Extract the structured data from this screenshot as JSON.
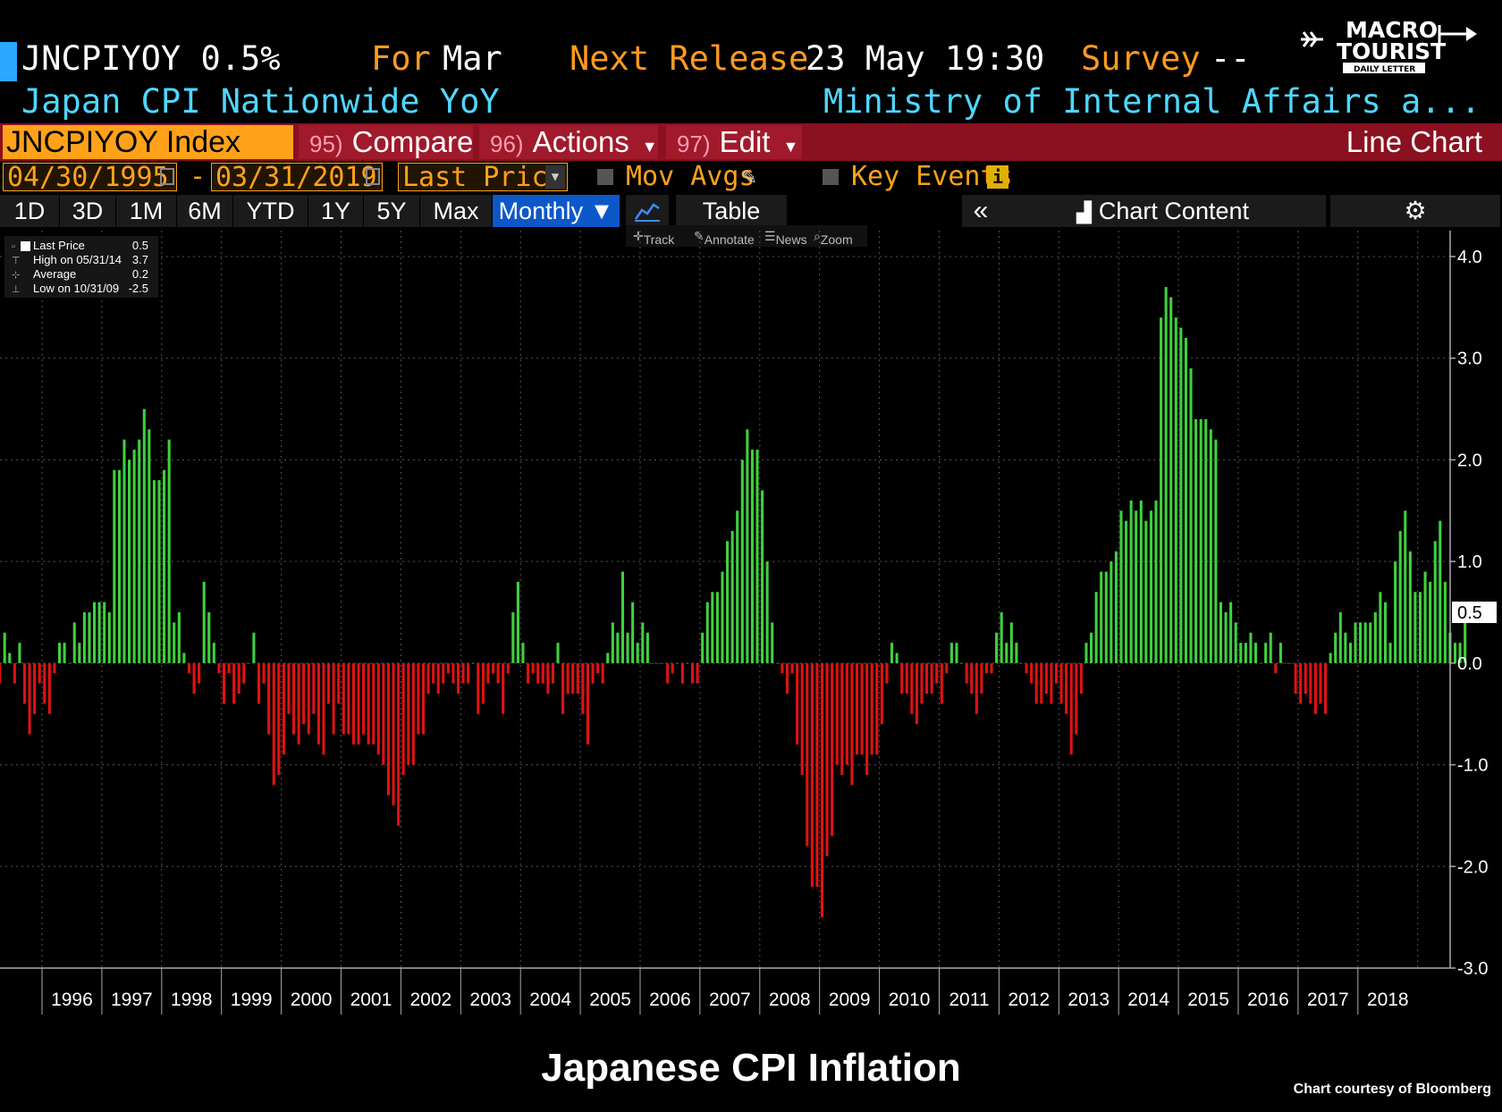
{
  "header": {
    "ticker_price": "JNCPIYOY 0.5%",
    "for_label": "For",
    "for_value": "Mar",
    "next_release_label": "Next Release",
    "next_release_value": "23 May 19:30",
    "survey_label": "Survey",
    "survey_value": "--",
    "description": "Japan CPI Nationwide YoY",
    "source": "Ministry of Internal Affairs a..."
  },
  "logo": {
    "line1": "MACRO",
    "line2": "TOURIST",
    "line3": "DAILY LETTER"
  },
  "toolbar": {
    "ticker_input": "JNCPIYOY Index",
    "compare_num": "95)",
    "compare_label": "Compare",
    "actions_num": "96)",
    "actions_label": "Actions",
    "edit_num": "97)",
    "edit_label": "Edit",
    "chart_type": "Line Chart"
  },
  "range": {
    "start_date": "04/30/1995",
    "dash": "-",
    "end_date": "03/31/2019",
    "field": "Last Price",
    "mov_avgs": "Mov Avgs",
    "key_events": "Key Events"
  },
  "periods": [
    "1D",
    "3D",
    "1M",
    "6M",
    "YTD",
    "1Y",
    "5Y",
    "Max"
  ],
  "frequency": "Monthly ▼",
  "table_label": "Table",
  "chart_content_label": "Chart Content",
  "chart_tools": [
    "Track",
    "Annotate",
    "News",
    "Zoom"
  ],
  "legend": {
    "last_price_label": "Last Price",
    "last_price_value": "0.5",
    "high_label": "High on 05/31/14",
    "high_value": "3.7",
    "average_label": "Average",
    "average_value": "0.2",
    "low_label": "Low on 10/31/09",
    "low_value": "-2.5"
  },
  "footer": {
    "title": "Japanese CPI Inflation",
    "credit": "Chart courtesy of Bloomberg"
  },
  "colors": {
    "positive": "#3fd13f",
    "negative": "#e01212",
    "accent": "#ffa21a",
    "selected": "#0d58c9"
  },
  "chart_data": {
    "type": "bar",
    "start": "04/30/1995",
    "end": "03/31/2019",
    "frequency": "monthly",
    "ylim": [
      -3.0,
      4.0
    ],
    "y_ticks": [
      "4.0",
      "3.0",
      "2.0",
      "1.0",
      "0.0",
      "-1.0",
      "-2.0",
      "-3.0"
    ],
    "x_ticks": [
      "1996",
      "1997",
      "1998",
      "1999",
      "2000",
      "2001",
      "2002",
      "2003",
      "2004",
      "2005",
      "2006",
      "2007",
      "2008",
      "2009",
      "2010",
      "2011",
      "2012",
      "2013",
      "2014",
      "2015",
      "2016",
      "2017",
      "2018"
    ],
    "last_value_label": "0.5",
    "values": [
      -0.2,
      0.3,
      0.1,
      -0.2,
      0.2,
      -0.4,
      -0.7,
      -0.5,
      -0.2,
      -0.4,
      -0.5,
      -0.1,
      0.2,
      0.2,
      0.0,
      0.4,
      0.2,
      0.5,
      0.5,
      0.6,
      0.6,
      0.6,
      0.5,
      1.9,
      1.9,
      2.2,
      2.0,
      2.1,
      2.2,
      2.5,
      2.3,
      1.8,
      1.8,
      1.9,
      2.2,
      0.4,
      0.5,
      0.1,
      -0.1,
      -0.3,
      -0.2,
      0.8,
      0.5,
      0.2,
      -0.1,
      -0.4,
      -0.1,
      -0.4,
      -0.3,
      -0.2,
      0.0,
      0.3,
      -0.4,
      -0.2,
      -0.7,
      -1.2,
      -1.1,
      -0.9,
      -0.5,
      -0.7,
      -0.8,
      -0.6,
      -0.7,
      -0.5,
      -0.8,
      -0.9,
      -0.4,
      -0.7,
      -0.4,
      -0.7,
      -0.7,
      -0.8,
      -0.8,
      -0.7,
      -0.8,
      -0.8,
      -0.9,
      -1.0,
      -1.3,
      -1.4,
      -1.6,
      -1.1,
      -1.0,
      -1.0,
      -0.7,
      -0.7,
      -0.3,
      -0.2,
      -0.3,
      -0.2,
      -0.1,
      -0.2,
      -0.3,
      -0.2,
      -0.2,
      0.0,
      -0.5,
      -0.4,
      -0.2,
      -0.1,
      -0.2,
      -0.5,
      -0.1,
      0.5,
      0.8,
      0.2,
      -0.2,
      -0.1,
      -0.2,
      -0.2,
      -0.3,
      -0.2,
      0.2,
      -0.5,
      -0.3,
      -0.3,
      -0.3,
      -0.5,
      -0.8,
      -0.2,
      -0.1,
      -0.2,
      0.1,
      0.4,
      0.3,
      0.9,
      0.3,
      0.6,
      0.2,
      0.4,
      0.3,
      0.0,
      0.0,
      0.0,
      -0.2,
      -0.1,
      0.0,
      -0.2,
      0.0,
      -0.2,
      -0.2,
      0.3,
      0.6,
      0.7,
      0.7,
      0.9,
      1.2,
      1.3,
      1.5,
      2.0,
      2.3,
      2.1,
      2.1,
      1.7,
      1.0,
      0.4,
      0.0,
      -0.1,
      -0.3,
      -0.1,
      -0.8,
      -1.1,
      -1.8,
      -2.2,
      -2.2,
      -2.5,
      -1.9,
      -1.7,
      -1.0,
      -1.1,
      -1.0,
      -1.2,
      -0.9,
      -0.9,
      -1.1,
      -0.9,
      -0.9,
      -0.6,
      -0.2,
      0.2,
      0.1,
      -0.3,
      -0.3,
      -0.5,
      -0.6,
      -0.4,
      -0.3,
      -0.3,
      -0.2,
      -0.4,
      -0.1,
      0.2,
      0.2,
      0.0,
      -0.2,
      -0.3,
      -0.5,
      -0.3,
      -0.1,
      -0.1,
      0.3,
      0.5,
      0.2,
      0.4,
      0.2,
      0.0,
      -0.1,
      -0.2,
      -0.4,
      -0.4,
      -0.3,
      -0.4,
      -0.2,
      -0.4,
      -0.5,
      -0.9,
      -0.7,
      -0.3,
      0.2,
      0.3,
      0.7,
      0.9,
      0.9,
      1.0,
      1.1,
      1.5,
      1.4,
      1.6,
      1.5,
      1.6,
      1.4,
      1.5,
      1.6,
      3.4,
      3.7,
      3.6,
      3.4,
      3.3,
      3.2,
      2.9,
      2.4,
      2.4,
      2.4,
      2.3,
      2.2,
      0.6,
      0.5,
      0.6,
      0.4,
      0.2,
      0.2,
      0.3,
      0.2,
      0.0,
      0.2,
      0.3,
      -0.1,
      0.2,
      0.0,
      0.0,
      -0.3,
      -0.4,
      -0.3,
      -0.4,
      -0.5,
      -0.4,
      -0.5,
      0.1,
      0.3,
      0.5,
      0.3,
      0.2,
      0.4,
      0.4,
      0.4,
      0.4,
      0.5,
      0.7,
      0.6,
      0.2,
      1.0,
      1.3,
      1.5,
      1.1,
      0.7,
      0.7,
      0.9,
      0.8,
      1.2,
      1.4,
      0.8,
      0.3,
      0.2,
      0.2,
      0.5
    ]
  }
}
